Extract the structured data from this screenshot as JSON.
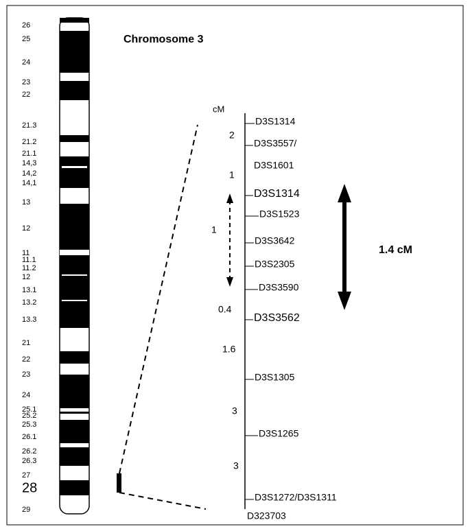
{
  "title": "Chromosome 3",
  "band_labels": [
    "26",
    "25",
    "24",
    "23",
    "22",
    "21.3",
    "21.2",
    "21.1",
    "14,3",
    "14,2",
    "14,1",
    "13",
    "12",
    "11",
    "11.1",
    "11.2",
    "12",
    "13.1",
    "13.2",
    "13.3",
    "21",
    "22",
    "23",
    "24",
    "25.1",
    "25.2",
    "25.3",
    "26.1",
    "26.2",
    "26.3",
    "27",
    "28",
    "29"
  ],
  "cm_header": "cM",
  "distances": [
    "2",
    "1",
    "1",
    "0.4",
    "1.6",
    "3",
    "3"
  ],
  "markers": [
    "D3S1314",
    "D3S3557/",
    "D3S1601",
    "D3S1314",
    "D3S1523",
    "D3S3642",
    "D3S2305",
    "D3S3590",
    "D3S3562",
    "D3S1305",
    "D3S1265",
    "D3S1272/D3S1311",
    "D323703"
  ],
  "interval_label": "1.4 cM"
}
